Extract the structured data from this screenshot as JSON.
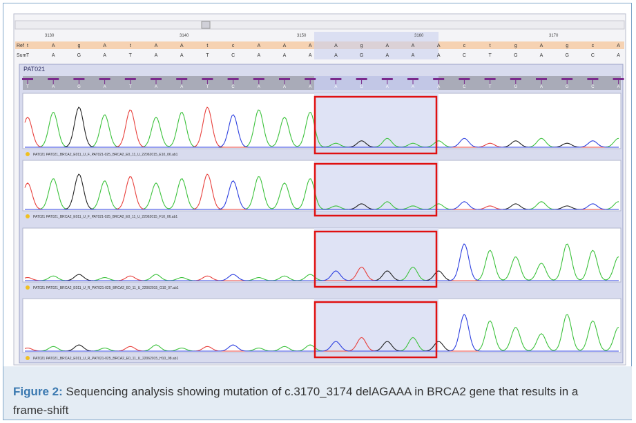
{
  "figure": {
    "time_labels": [
      "3130",
      "3140",
      "3150",
      "3160",
      "3170"
    ],
    "ref_label": "Ref",
    "sum_label": "Sum",
    "ref_bases": [
      "t",
      "A",
      "g",
      "A",
      "t",
      "A",
      "A",
      "t",
      "c",
      "A",
      "A",
      "A",
      "A",
      "g",
      "A",
      "A",
      "A",
      "c",
      "t",
      "g",
      "A",
      "g",
      "c",
      "A"
    ],
    "sum_bases": [
      "T",
      "A",
      "G",
      "A",
      "T",
      "A",
      "A",
      "T",
      "C",
      "A",
      "A",
      "A",
      "A",
      "G",
      "A",
      "A",
      "A",
      "C",
      "T",
      "G",
      "A",
      "G",
      "C",
      "A"
    ],
    "panel_label": "PAT021",
    "tracks": [
      {
        "file": "PAT021 PAT021_BRCA2_E011_U_F_PAT021-025_BRCA2_E0_11_U_22062015_E10_06.ab1"
      },
      {
        "file": "PAT021 PAT021_BRCA2_E011_U_F_PAT021-025_BRCA2_E0_11_U_22062015_F10_06.ab1"
      },
      {
        "file": "PAT021 PAT021_BRCA2_E011_U_R_PAT021-025_BRCA2_E0_11_U_22062015_G10_07.ab1"
      },
      {
        "file": "PAT021 PAT021_BRCA2_E011_U_R_PAT021-025_BRCA2_E0_11_U_22062015_H10_08.ab1"
      }
    ]
  },
  "caption": {
    "label": "Figure 2:",
    "text": "Sequencing analysis showing mutation of c.3170_3174 delAGAAA in BRCA2 gene that results in a frame-shift"
  }
}
